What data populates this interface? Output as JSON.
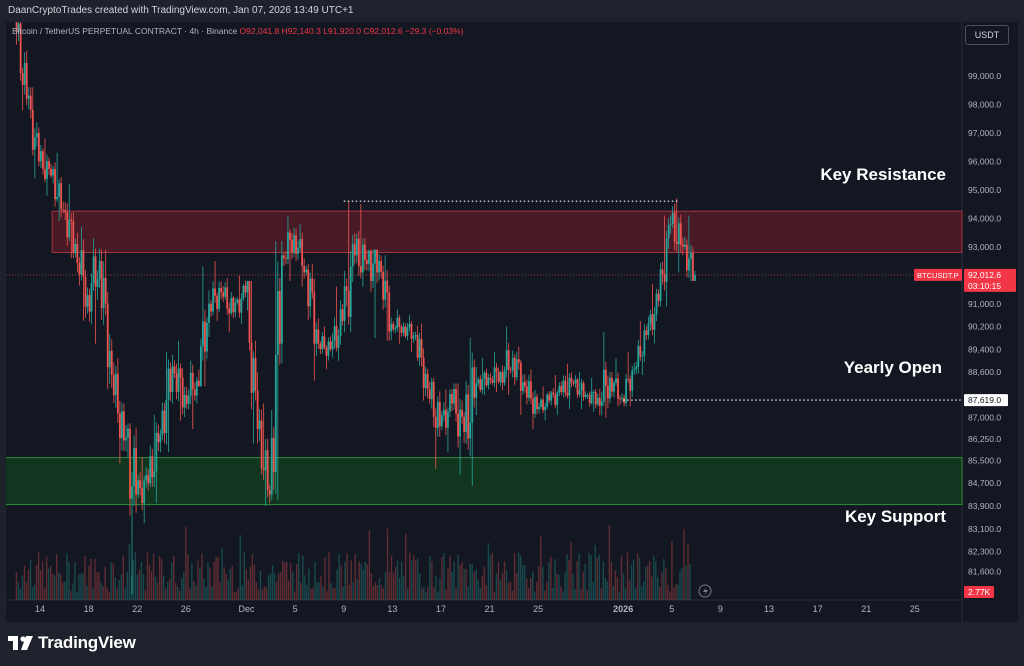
{
  "header": {
    "attribution": "DaanCryptoTrades created with TradingView.com, Jan 07, 2026 13:49 UTC+1"
  },
  "legend": {
    "symbol": "Bitcoin / TetherUS PERPETUAL CONTRACT · 4h · Binance",
    "ohlc": "O92,041.8  H92,140.3  L91,920.0  C92,012.6  −29.3 (−0.03%)"
  },
  "unit_button": "USDT",
  "footer": {
    "brand": "TradingView"
  },
  "colors": {
    "up": "#26a69a",
    "down": "#ef5350",
    "resistance_zone": "#6b1e2a",
    "support_zone": "#0c3a14",
    "background": "#131722"
  },
  "chart_data": {
    "type": "candlestick",
    "symbol": "BTCUSDT.P",
    "timeframe": "4h",
    "ylim": [
      80600,
      100400
    ],
    "price_ticks": [
      "99,000.0",
      "98,000.0",
      "97,000.0",
      "96,000.0",
      "95,000.0",
      "94,000.0",
      "93,000.0",
      "91,000.0",
      "90,200.0",
      "89,400.0",
      "88,600.0",
      "87,000.0",
      "86,250.0",
      "85,500.0",
      "84,700.0",
      "83,900.0",
      "83,100.0",
      "82,300.0",
      "81,600.0"
    ],
    "price_tick_values": [
      99000,
      98000,
      97000,
      96000,
      95000,
      94000,
      93000,
      91000,
      90200,
      89400,
      88600,
      87000,
      86250,
      85500,
      84700,
      83900,
      83100,
      82300,
      81600
    ],
    "x_ticks": [
      {
        "label": "14",
        "day": 14
      },
      {
        "label": "18",
        "day": 18
      },
      {
        "label": "22",
        "day": 22
      },
      {
        "label": "26",
        "day": 26
      },
      {
        "label": "Dec",
        "day": 31
      },
      {
        "label": "5",
        "day": 35
      },
      {
        "label": "9",
        "day": 39
      },
      {
        "label": "13",
        "day": 43
      },
      {
        "label": "17",
        "day": 47
      },
      {
        "label": "21",
        "day": 51
      },
      {
        "label": "25",
        "day": 55
      },
      {
        "label": "2026",
        "day": 62
      },
      {
        "label": "5",
        "day": 66
      },
      {
        "label": "9",
        "day": 70
      },
      {
        "label": "13",
        "day": 74
      },
      {
        "label": "17",
        "day": 78
      },
      {
        "label": "21",
        "day": 82
      },
      {
        "label": "25",
        "day": 86
      }
    ],
    "daily_closes": [
      {
        "day": 12,
        "o": 101000,
        "c": 98200,
        "h": 101500,
        "l": 97800
      },
      {
        "day": 13,
        "o": 98200,
        "c": 96000,
        "h": 98600,
        "l": 95400
      },
      {
        "day": 14,
        "o": 96000,
        "c": 95500,
        "h": 96800,
        "l": 94800
      },
      {
        "day": 15,
        "o": 95500,
        "c": 94300,
        "h": 96300,
        "l": 93900
      },
      {
        "day": 16,
        "o": 94300,
        "c": 93100,
        "h": 95200,
        "l": 92600
      },
      {
        "day": 17,
        "o": 93100,
        "c": 91300,
        "h": 93700,
        "l": 90400
      },
      {
        "day": 18,
        "o": 91300,
        "c": 92500,
        "h": 93300,
        "l": 89600
      },
      {
        "day": 19,
        "o": 92500,
        "c": 88500,
        "h": 92900,
        "l": 88000
      },
      {
        "day": 20,
        "o": 88500,
        "c": 86200,
        "h": 89100,
        "l": 85400
      },
      {
        "day": 21,
        "o": 86200,
        "c": 84300,
        "h": 86800,
        "l": 80800
      },
      {
        "day": 22,
        "o": 84300,
        "c": 84700,
        "h": 85600,
        "l": 83300
      },
      {
        "day": 23,
        "o": 84700,
        "c": 86400,
        "h": 87100,
        "l": 84000
      },
      {
        "day": 24,
        "o": 86400,
        "c": 88800,
        "h": 89300,
        "l": 85800
      },
      {
        "day": 25,
        "o": 88800,
        "c": 87800,
        "h": 89700,
        "l": 86900
      },
      {
        "day": 26,
        "o": 87800,
        "c": 88300,
        "h": 89000,
        "l": 86600
      },
      {
        "day": 27,
        "o": 88300,
        "c": 91000,
        "h": 92300,
        "l": 88100
      },
      {
        "day": 28,
        "o": 91000,
        "c": 91400,
        "h": 92500,
        "l": 90400
      },
      {
        "day": 29,
        "o": 91400,
        "c": 90700,
        "h": 91900,
        "l": 90000
      },
      {
        "day": 30,
        "o": 90700,
        "c": 91400,
        "h": 92000,
        "l": 90300
      },
      {
        "day": 31,
        "o": 91400,
        "c": 86600,
        "h": 91800,
        "l": 86100
      },
      {
        "day": 32,
        "o": 86600,
        "c": 84300,
        "h": 87500,
        "l": 83900
      },
      {
        "day": 33,
        "o": 84300,
        "c": 92700,
        "h": 93200,
        "l": 84100
      },
      {
        "day": 34,
        "o": 92700,
        "c": 93400,
        "h": 94100,
        "l": 91800
      },
      {
        "day": 35,
        "o": 93400,
        "c": 92200,
        "h": 93800,
        "l": 91600
      },
      {
        "day": 36,
        "o": 92200,
        "c": 89600,
        "h": 92400,
        "l": 88300
      },
      {
        "day": 37,
        "o": 89600,
        "c": 89400,
        "h": 90200,
        "l": 88700
      },
      {
        "day": 38,
        "o": 89400,
        "c": 90400,
        "h": 91600,
        "l": 89000
      },
      {
        "day": 39,
        "o": 90400,
        "c": 92700,
        "h": 94600,
        "l": 90000
      },
      {
        "day": 40,
        "o": 92700,
        "c": 92400,
        "h": 94500,
        "l": 91600
      },
      {
        "day": 41,
        "o": 92400,
        "c": 92500,
        "h": 92900,
        "l": 89800
      },
      {
        "day": 42,
        "o": 92500,
        "c": 90300,
        "h": 92700,
        "l": 89700
      },
      {
        "day": 43,
        "o": 90300,
        "c": 90200,
        "h": 90800,
        "l": 89600
      },
      {
        "day": 44,
        "o": 90200,
        "c": 89900,
        "h": 90600,
        "l": 89300
      },
      {
        "day": 45,
        "o": 89900,
        "c": 88000,
        "h": 90300,
        "l": 87600
      },
      {
        "day": 46,
        "o": 88000,
        "c": 86700,
        "h": 88400,
        "l": 85200
      },
      {
        "day": 47,
        "o": 86700,
        "c": 87500,
        "h": 88000,
        "l": 85800
      },
      {
        "day": 48,
        "o": 87500,
        "c": 86500,
        "h": 88200,
        "l": 85000
      },
      {
        "day": 49,
        "o": 86500,
        "c": 88200,
        "h": 89800,
        "l": 84600
      },
      {
        "day": 50,
        "o": 88200,
        "c": 88400,
        "h": 89100,
        "l": 87800
      },
      {
        "day": 51,
        "o": 88400,
        "c": 88600,
        "h": 89300,
        "l": 87900
      },
      {
        "day": 52,
        "o": 88600,
        "c": 89100,
        "h": 90200,
        "l": 87800
      },
      {
        "day": 53,
        "o": 89100,
        "c": 88100,
        "h": 89500,
        "l": 87100
      },
      {
        "day": 54,
        "o": 88100,
        "c": 87300,
        "h": 88700,
        "l": 86600
      },
      {
        "day": 55,
        "o": 87300,
        "c": 87600,
        "h": 88100,
        "l": 86900
      },
      {
        "day": 56,
        "o": 87600,
        "c": 87900,
        "h": 88500,
        "l": 87100
      },
      {
        "day": 57,
        "o": 87900,
        "c": 88200,
        "h": 88900,
        "l": 87300
      },
      {
        "day": 58,
        "o": 88200,
        "c": 87800,
        "h": 88600,
        "l": 87300
      },
      {
        "day": 59,
        "o": 87800,
        "c": 87700,
        "h": 88400,
        "l": 87200
      },
      {
        "day": 60,
        "o": 87700,
        "c": 88400,
        "h": 90000,
        "l": 87000
      },
      {
        "day": 61,
        "o": 88400,
        "c": 87700,
        "h": 89100,
        "l": 87400
      },
      {
        "day": 62,
        "o": 87700,
        "c": 88700,
        "h": 89300,
        "l": 87400
      },
      {
        "day": 63,
        "o": 88700,
        "c": 89900,
        "h": 90400,
        "l": 88500
      },
      {
        "day": 64,
        "o": 89900,
        "c": 91100,
        "h": 91700,
        "l": 89600
      },
      {
        "day": 65,
        "o": 91100,
        "c": 93800,
        "h": 94100,
        "l": 90900
      },
      {
        "day": 66,
        "o": 93800,
        "c": 93000,
        "h": 94700,
        "l": 92100
      },
      {
        "day": 67,
        "o": 93000,
        "c": 92012.6,
        "h": 94100,
        "l": 91800
      }
    ],
    "zones": [
      {
        "name": "Key Resistance",
        "from": 92800,
        "to": 94250,
        "day_start": 15,
        "day_end": 90
      },
      {
        "name": "Key Support",
        "from": 83950,
        "to": 85600,
        "day_start": 10,
        "day_end": 90
      }
    ],
    "levels": [
      {
        "name": "Yearly Open",
        "price": 87619.0,
        "label": "87,619.0",
        "day_start": 62
      },
      {
        "name": "Range High",
        "price": 94600,
        "day_start": 39,
        "day_end": 66.5
      }
    ],
    "current_price": {
      "label": "BTCUSDT.P",
      "price": 92012.6,
      "price_label": "92,012.6",
      "countdown": "03:10:15"
    },
    "volume_max_label": "2.77K",
    "annotations": [
      "Key Resistance",
      "Yearly Open",
      "Key Support"
    ]
  }
}
